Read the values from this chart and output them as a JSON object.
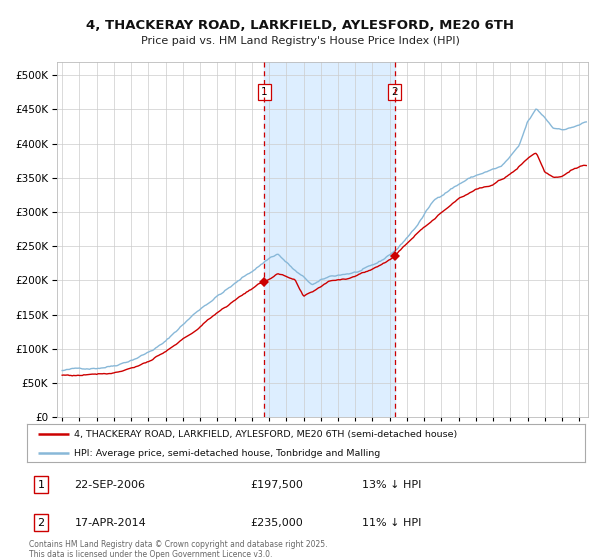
{
  "title": "4, THACKERAY ROAD, LARKFIELD, AYLESFORD, ME20 6TH",
  "subtitle": "Price paid vs. HM Land Registry's House Price Index (HPI)",
  "legend_line1": "4, THACKERAY ROAD, LARKFIELD, AYLESFORD, ME20 6TH (semi-detached house)",
  "legend_line2": "HPI: Average price, semi-detached house, Tonbridge and Malling",
  "annotation1_label": "1",
  "annotation1_date": "22-SEP-2006",
  "annotation1_price": "£197,500",
  "annotation1_hpi": "13% ↓ HPI",
  "annotation1_year": 2006.72,
  "annotation1_value": 197500,
  "annotation2_label": "2",
  "annotation2_date": "17-APR-2014",
  "annotation2_price": "£235,000",
  "annotation2_hpi": "11% ↓ HPI",
  "annotation2_year": 2014.29,
  "annotation2_value": 235000,
  "footer": "Contains HM Land Registry data © Crown copyright and database right 2025.\nThis data is licensed under the Open Government Licence v3.0.",
  "hpi_color": "#88b8d8",
  "price_color": "#cc0000",
  "vline_color": "#cc0000",
  "shade_color": "#ddeeff",
  "background_color": "#ffffff",
  "grid_color": "#cccccc",
  "ylim": [
    0,
    520000
  ],
  "xlim_start": 1994.7,
  "xlim_end": 2025.5,
  "hpi_waypoints_t": [
    1995.0,
    1996.0,
    1997.0,
    1998.0,
    1999.0,
    2000.0,
    2001.0,
    2002.0,
    2003.0,
    2004.0,
    2005.0,
    2006.0,
    2007.0,
    2007.5,
    2008.5,
    2009.5,
    2010.5,
    2011.5,
    2012.0,
    2013.0,
    2013.5,
    2014.5,
    2015.5,
    2016.5,
    2017.5,
    2018.5,
    2019.5,
    2020.5,
    2021.5,
    2022.0,
    2022.5,
    2023.0,
    2023.5,
    2024.0,
    2024.5,
    2025.3
  ],
  "hpi_waypoints_v": [
    68000,
    70000,
    73000,
    78000,
    88000,
    100000,
    115000,
    140000,
    163000,
    183000,
    200000,
    218000,
    238000,
    245000,
    220000,
    198000,
    208000,
    213000,
    215000,
    222000,
    228000,
    248000,
    278000,
    315000,
    335000,
    350000,
    360000,
    368000,
    395000,
    430000,
    448000,
    435000,
    420000,
    420000,
    422000,
    430000
  ],
  "price_waypoints_t": [
    1995.0,
    1996.0,
    1997.0,
    1998.0,
    1999.0,
    2000.0,
    2001.0,
    2002.0,
    2003.0,
    2004.0,
    2005.0,
    2006.0,
    2006.72,
    2007.5,
    2008.5,
    2009.0,
    2009.5,
    2010.5,
    2011.5,
    2012.0,
    2013.0,
    2013.5,
    2014.29,
    2015.0,
    2016.0,
    2017.0,
    2018.0,
    2019.0,
    2020.0,
    2021.0,
    2022.0,
    2022.5,
    2023.0,
    2023.5,
    2024.0,
    2024.5,
    2025.3
  ],
  "price_waypoints_v": [
    58000,
    58000,
    62000,
    65000,
    73000,
    83000,
    95000,
    112000,
    130000,
    152000,
    170000,
    188000,
    197500,
    210000,
    198000,
    172000,
    178000,
    195000,
    200000,
    205000,
    215000,
    222000,
    235000,
    255000,
    282000,
    302000,
    325000,
    340000,
    345000,
    360000,
    385000,
    393000,
    365000,
    358000,
    360000,
    370000,
    375000
  ]
}
